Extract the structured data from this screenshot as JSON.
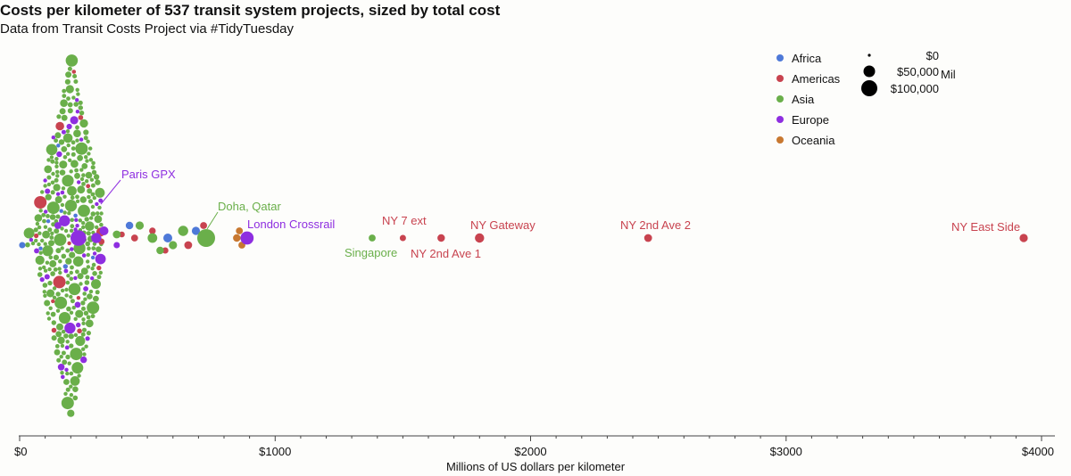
{
  "header": {
    "title": "Costs per kilometer of 537 transit system projects, sized by total cost",
    "subtitle": "Data from Transit Costs Project via #TidyTuesday"
  },
  "colors": {
    "Africa": "#4e79d8",
    "Americas": "#c8434f",
    "Asia": "#6aaf4a",
    "Europe": "#8e2ee0",
    "Oceania": "#c87830",
    "axis": "#444444",
    "background": "#fdfdfb"
  },
  "chart_data": {
    "type": "scatter",
    "subtype": "beeswarm",
    "title": "Costs per kilometer of 537 transit system projects, sized by total cost",
    "subtitle": "Data from Transit Costs Project via #TidyTuesday",
    "xlabel": "Millions of US dollars per kilometer",
    "ylabel": "",
    "xlim": [
      0,
      4000
    ],
    "xticks": [
      0,
      1000,
      2000,
      3000,
      4000
    ],
    "xtick_labels": [
      "$0",
      "$1000",
      "$2000",
      "$3000",
      "$4000"
    ],
    "grid": false,
    "size_encoding": "total cost (Mil)",
    "legend": {
      "placement": "top-right",
      "color_title": "",
      "color_entries": [
        "Africa",
        "Americas",
        "Asia",
        "Europe",
        "Oceania"
      ],
      "size_title": "Mil",
      "size_entries": [
        {
          "label": "$0",
          "value": 0
        },
        {
          "label": "$50,000",
          "value": 50000
        },
        {
          "label": "$100,000",
          "value": 100000
        }
      ]
    },
    "highlighted_points": [
      {
        "label": "Paris GPX",
        "x": 230,
        "total_cost": 40000,
        "region": "Europe"
      },
      {
        "label": "Doha, Qatar",
        "x": 730,
        "total_cost": 55000,
        "region": "Asia"
      },
      {
        "label": "London Crossrail",
        "x": 890,
        "total_cost": 25000,
        "region": "Europe"
      },
      {
        "label": "Singapore",
        "x": 1380,
        "total_cost": 3000,
        "region": "Asia"
      },
      {
        "label": "NY 7 ext",
        "x": 1500,
        "total_cost": 2000,
        "region": "Americas"
      },
      {
        "label": "NY 2nd Ave 1",
        "x": 1650,
        "total_cost": 4000,
        "region": "Americas"
      },
      {
        "label": "NY Gateway",
        "x": 1800,
        "total_cost": 9000,
        "region": "Americas"
      },
      {
        "label": "NY 2nd Ave 2",
        "x": 2460,
        "total_cost": 5000,
        "region": "Americas"
      },
      {
        "label": "NY East Side",
        "x": 3930,
        "total_cost": 6000,
        "region": "Americas"
      }
    ],
    "series": [
      {
        "name": "Africa",
        "points": [
          {
            "x": 580,
            "cost": 8000
          },
          {
            "x": 690,
            "cost": 6000
          },
          {
            "x": 10,
            "cost": 2000
          },
          {
            "x": 430,
            "cost": 4000
          }
        ]
      },
      {
        "name": "Americas",
        "points": [
          {
            "x": 450,
            "cost": 3000
          },
          {
            "x": 520,
            "cost": 2500
          },
          {
            "x": 660,
            "cost": 5000
          },
          {
            "x": 720,
            "cost": 3000
          },
          {
            "x": 570,
            "cost": 2000
          },
          {
            "x": 400,
            "cost": 1500
          },
          {
            "x": 320,
            "cost": 2000
          }
        ]
      },
      {
        "name": "Asia",
        "points": [
          {
            "x": 520,
            "cost": 10000
          },
          {
            "x": 640,
            "cost": 12000
          },
          {
            "x": 600,
            "cost": 6000
          },
          {
            "x": 470,
            "cost": 6000
          },
          {
            "x": 550,
            "cost": 4000
          },
          {
            "x": 380,
            "cost": 5000
          }
        ]
      },
      {
        "name": "Europe",
        "points": [
          {
            "x": 300,
            "cost": 12000
          },
          {
            "x": 330,
            "cost": 8000
          },
          {
            "x": 380,
            "cost": 2000
          },
          {
            "x": 150,
            "cost": 3000
          }
        ]
      },
      {
        "name": "Oceania",
        "points": [
          {
            "x": 850,
            "cost": 4000
          },
          {
            "x": 860,
            "cost": 3000
          },
          {
            "x": 870,
            "cost": 3000
          }
        ]
      }
    ],
    "bulk_distribution": {
      "total_projects": 537,
      "dominant_region": "Asia",
      "typical_x_range": [
        30,
        320
      ],
      "peak_x": 200
    }
  },
  "annotations": {
    "paris": "Paris GPX",
    "doha": "Doha, Qatar",
    "london": "London Crossrail",
    "singapore": "Singapore",
    "ny7": "NY 7 ext",
    "ny2a1": "NY 2nd Ave 1",
    "nygw": "NY Gateway",
    "ny2a2": "NY 2nd Ave 2",
    "nyes": "NY East Side"
  }
}
